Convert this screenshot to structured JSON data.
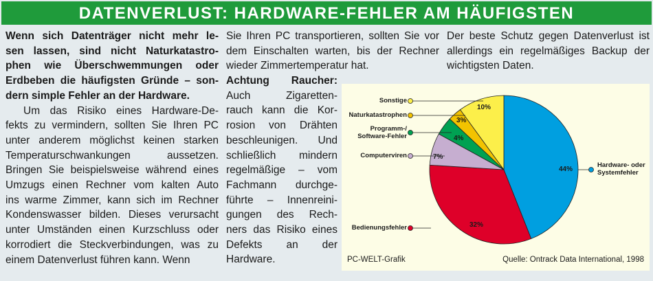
{
  "title": "DATENVERLUST: HARDWARE-FEHLER AM HÄUFIGSTEN",
  "column1": {
    "bold_lines": [
      "Wenn sich Datenträger nicht mehr le-",
      "sen lassen, sind nicht Naturkatastro-",
      "phen wie Überschwemmungen oder",
      "Erdbeben die häufigsten Gründe – son-",
      "dern simple Fehler an der Hardware."
    ],
    "lines": [
      "Um das Risiko eines Hardware-De-",
      "fekts zu vermindern, sollten Sie Ihren PC",
      "unter anderem möglichst keinen starken",
      "Temperaturschwankungen aussetzen.",
      "Bringen Sie beispielsweise während eines",
      "Umzugs einen Rechner vom kalten Auto",
      "ins warme Zimmer, kann sich im Rechner",
      "Kondenswasser bilden. Dieses verursacht",
      "unter Umständen einen Kurzschluss oder",
      "korrodiert die Steckverbindungen, was zu",
      "einem Datenverlust führen kann. Wenn"
    ]
  },
  "column2": {
    "top_lines": [
      "Sie Ihren PC transportieren, sollten Sie vor",
      "dem Einschalten warten, bis der Rechner",
      "wieder Zimmertemperatur hat."
    ],
    "heading": "Achtung Raucher:",
    "lines": [
      "Auch Zigaretten-",
      "rauch kann die Kor-",
      "rosion von Drähten",
      "beschleunigen. Und",
      "schließlich mindern",
      "regelmäßige – vom",
      "Fachmann durchge-",
      "führte – Innenreini-",
      "gungen des Rech-",
      "ners das Risiko eines",
      "Defekts an der",
      "Hardware."
    ]
  },
  "column3": {
    "lines": [
      "Der beste Schutz gegen Datenverlust ist",
      "allerdings ein regelmäßiges Backup der",
      "wichtigsten Daten."
    ]
  },
  "chart_data": {
    "type": "pie",
    "slices": [
      {
        "label": "Hardware- oder Systemfehler",
        "value": 44,
        "pct_label": "44%",
        "color": "#009fe0"
      },
      {
        "label": "Bedienungsfehler",
        "value": 32,
        "pct_label": "32%",
        "color": "#de0029"
      },
      {
        "label": "Computerviren",
        "value": 7,
        "pct_label": "7%",
        "color": "#c6aed0"
      },
      {
        "label": "Programm-/ Software-Fehler",
        "value": 4,
        "pct_label": "4%",
        "color": "#00a152"
      },
      {
        "label": "Naturkatastrophen",
        "value": 3,
        "pct_label": "3%",
        "color": "#f3c300"
      },
      {
        "label": "Sonstige",
        "value": 10,
        "pct_label": "10%",
        "color": "#fcef4a"
      }
    ],
    "credit": "PC-WELT-Grafik",
    "source": "Quelle: Ontrack Data International, 1998"
  }
}
